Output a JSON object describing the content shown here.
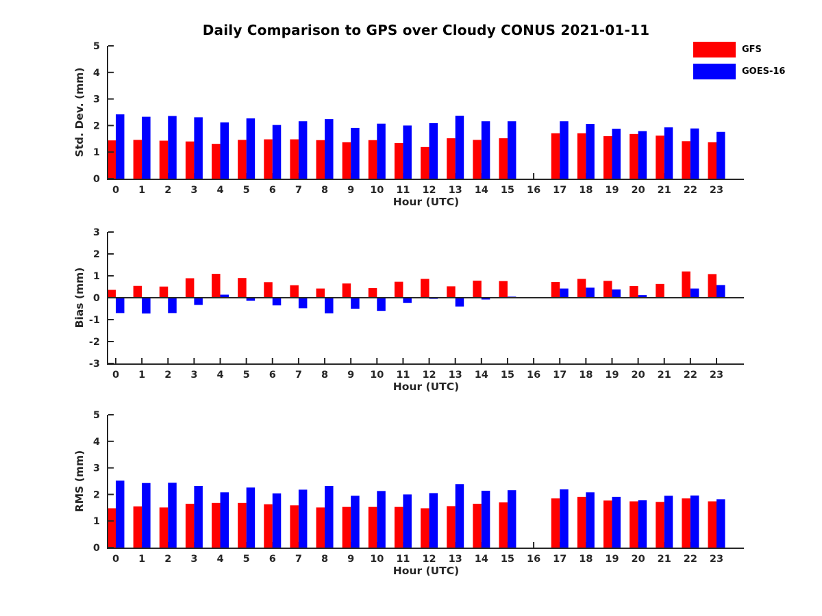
{
  "title": "Daily Comparison to GPS over Cloudy CONUS 2021-01-11",
  "colors": {
    "gfs": "#ff0000",
    "goes16": "#0000ff",
    "axis": "#262626",
    "tick_text": "#262626",
    "title_text": "#000000",
    "background": "#ffffff"
  },
  "legend": {
    "items": [
      {
        "label": "GFS",
        "color": "#ff0000"
      },
      {
        "label": "GOES-16",
        "color": "#0000ff"
      }
    ]
  },
  "chart_data": [
    {
      "type": "bar",
      "title": "",
      "ylabel": "Std. Dev. (mm)",
      "xlabel": "Hour (UTC)",
      "categories": [
        "0",
        "1",
        "2",
        "3",
        "4",
        "5",
        "6",
        "7",
        "8",
        "9",
        "10",
        "11",
        "12",
        "13",
        "14",
        "15",
        "16",
        "17",
        "18",
        "19",
        "20",
        "21",
        "22",
        "23"
      ],
      "ylim": [
        0,
        5
      ],
      "yticks": [
        0,
        1,
        2,
        3,
        4,
        5
      ],
      "grid": false,
      "legend_position": "top-right",
      "series": [
        {
          "name": "GFS",
          "color": "#ff0000",
          "values": [
            1.44,
            1.46,
            1.43,
            1.4,
            1.31,
            1.46,
            1.48,
            1.48,
            1.45,
            1.37,
            1.45,
            1.34,
            1.19,
            1.52,
            1.46,
            1.52,
            null,
            1.71,
            1.71,
            1.6,
            1.68,
            1.62,
            1.41,
            1.37
          ]
        },
        {
          "name": "GOES-16",
          "color": "#0000ff",
          "values": [
            2.42,
            2.33,
            2.36,
            2.31,
            2.12,
            2.27,
            2.02,
            2.16,
            2.24,
            1.91,
            2.07,
            2.0,
            2.09,
            2.37,
            2.16,
            2.16,
            null,
            2.16,
            2.06,
            1.88,
            1.79,
            1.93,
            1.89,
            1.76
          ]
        }
      ]
    },
    {
      "type": "bar",
      "title": "",
      "ylabel": "Bias (mm)",
      "xlabel": "Hour (UTC)",
      "categories": [
        "0",
        "1",
        "2",
        "3",
        "4",
        "5",
        "6",
        "7",
        "8",
        "9",
        "10",
        "11",
        "12",
        "13",
        "14",
        "15",
        "16",
        "17",
        "18",
        "19",
        "20",
        "21",
        "22",
        "23"
      ],
      "ylim": [
        -3,
        3
      ],
      "yticks": [
        -3,
        -2,
        -1,
        0,
        1,
        2,
        3
      ],
      "grid": false,
      "zero_line": true,
      "series": [
        {
          "name": "GFS",
          "color": "#ff0000",
          "values": [
            0.36,
            0.54,
            0.51,
            0.89,
            1.09,
            0.9,
            0.71,
            0.57,
            0.42,
            0.65,
            0.44,
            0.73,
            0.86,
            0.52,
            0.78,
            0.76,
            null,
            0.72,
            0.86,
            0.77,
            0.53,
            0.63,
            1.2,
            1.08
          ]
        },
        {
          "name": "GOES-16",
          "color": "#0000ff",
          "values": [
            -0.7,
            -0.72,
            -0.7,
            -0.33,
            0.14,
            -0.14,
            -0.35,
            -0.48,
            -0.71,
            -0.5,
            -0.6,
            -0.24,
            -0.05,
            -0.4,
            -0.08,
            0.05,
            null,
            0.42,
            0.46,
            0.38,
            0.12,
            0.0,
            0.42,
            0.58
          ]
        }
      ]
    },
    {
      "type": "bar",
      "title": "",
      "ylabel": "RMS (mm)",
      "xlabel": "Hour (UTC)",
      "categories": [
        "0",
        "1",
        "2",
        "3",
        "4",
        "5",
        "6",
        "7",
        "8",
        "9",
        "10",
        "11",
        "12",
        "13",
        "14",
        "15",
        "16",
        "17",
        "18",
        "19",
        "20",
        "21",
        "22",
        "23"
      ],
      "ylim": [
        0,
        5
      ],
      "yticks": [
        0,
        1,
        2,
        3,
        4,
        5
      ],
      "grid": false,
      "series": [
        {
          "name": "GFS",
          "color": "#ff0000",
          "values": [
            1.48,
            1.55,
            1.51,
            1.65,
            1.68,
            1.68,
            1.63,
            1.59,
            1.51,
            1.53,
            1.53,
            1.53,
            1.48,
            1.56,
            1.65,
            1.7,
            null,
            1.85,
            1.91,
            1.77,
            1.74,
            1.72,
            1.85,
            1.74
          ]
        },
        {
          "name": "GOES-16",
          "color": "#0000ff",
          "values": [
            2.52,
            2.43,
            2.44,
            2.32,
            2.08,
            2.26,
            2.04,
            2.18,
            2.32,
            1.95,
            2.13,
            2.0,
            2.05,
            2.39,
            2.14,
            2.16,
            null,
            2.19,
            2.08,
            1.91,
            1.78,
            1.95,
            1.96,
            1.82
          ]
        }
      ]
    }
  ]
}
